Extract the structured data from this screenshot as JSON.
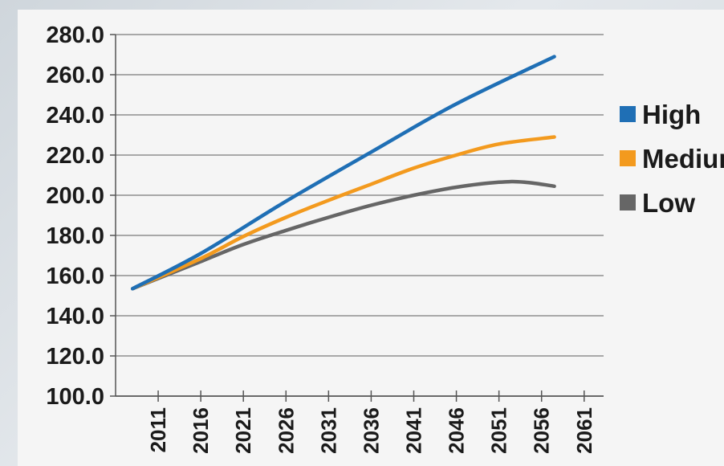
{
  "chart_data": {
    "type": "line",
    "title": "",
    "xlabel": "",
    "ylabel": "",
    "x_ticks": [
      "2011",
      "2016",
      "2021",
      "2026",
      "2031",
      "2036",
      "2041",
      "2046",
      "2051",
      "2056",
      "2061"
    ],
    "y_ticks": [
      "100.0",
      "120.0",
      "140.0",
      "160.0",
      "180.0",
      "200.0",
      "220.0",
      "240.0",
      "260.0",
      "280.0"
    ],
    "xlim": [
      2006,
      2063
    ],
    "ylim": [
      100,
      280
    ],
    "grid": "horizontal",
    "legend_position": "right",
    "series": [
      {
        "name": "High",
        "color": "#1f6fb5",
        "points": [
          [
            2008,
            153.5
          ],
          [
            2016,
            171
          ],
          [
            2026,
            197
          ],
          [
            2036,
            221.5
          ],
          [
            2046,
            245.5
          ],
          [
            2057.5,
            269
          ]
        ]
      },
      {
        "name": "Medium",
        "color": "#f39a1e",
        "points": [
          [
            2008,
            153.5
          ],
          [
            2016,
            168.5
          ],
          [
            2021,
            179.5
          ],
          [
            2026,
            189
          ],
          [
            2031,
            197.5
          ],
          [
            2036,
            205.5
          ],
          [
            2041,
            213.5
          ],
          [
            2046,
            220
          ],
          [
            2051,
            225.5
          ],
          [
            2057.5,
            229
          ]
        ]
      },
      {
        "name": "Low",
        "color": "#666666",
        "points": [
          [
            2008,
            153.5
          ],
          [
            2016,
            167
          ],
          [
            2021,
            175.5
          ],
          [
            2026,
            182.5
          ],
          [
            2031,
            189
          ],
          [
            2036,
            195
          ],
          [
            2041,
            200
          ],
          [
            2046,
            204
          ],
          [
            2051,
            206.5
          ],
          [
            2054,
            206.5
          ],
          [
            2057.5,
            204.5
          ]
        ]
      }
    ]
  }
}
